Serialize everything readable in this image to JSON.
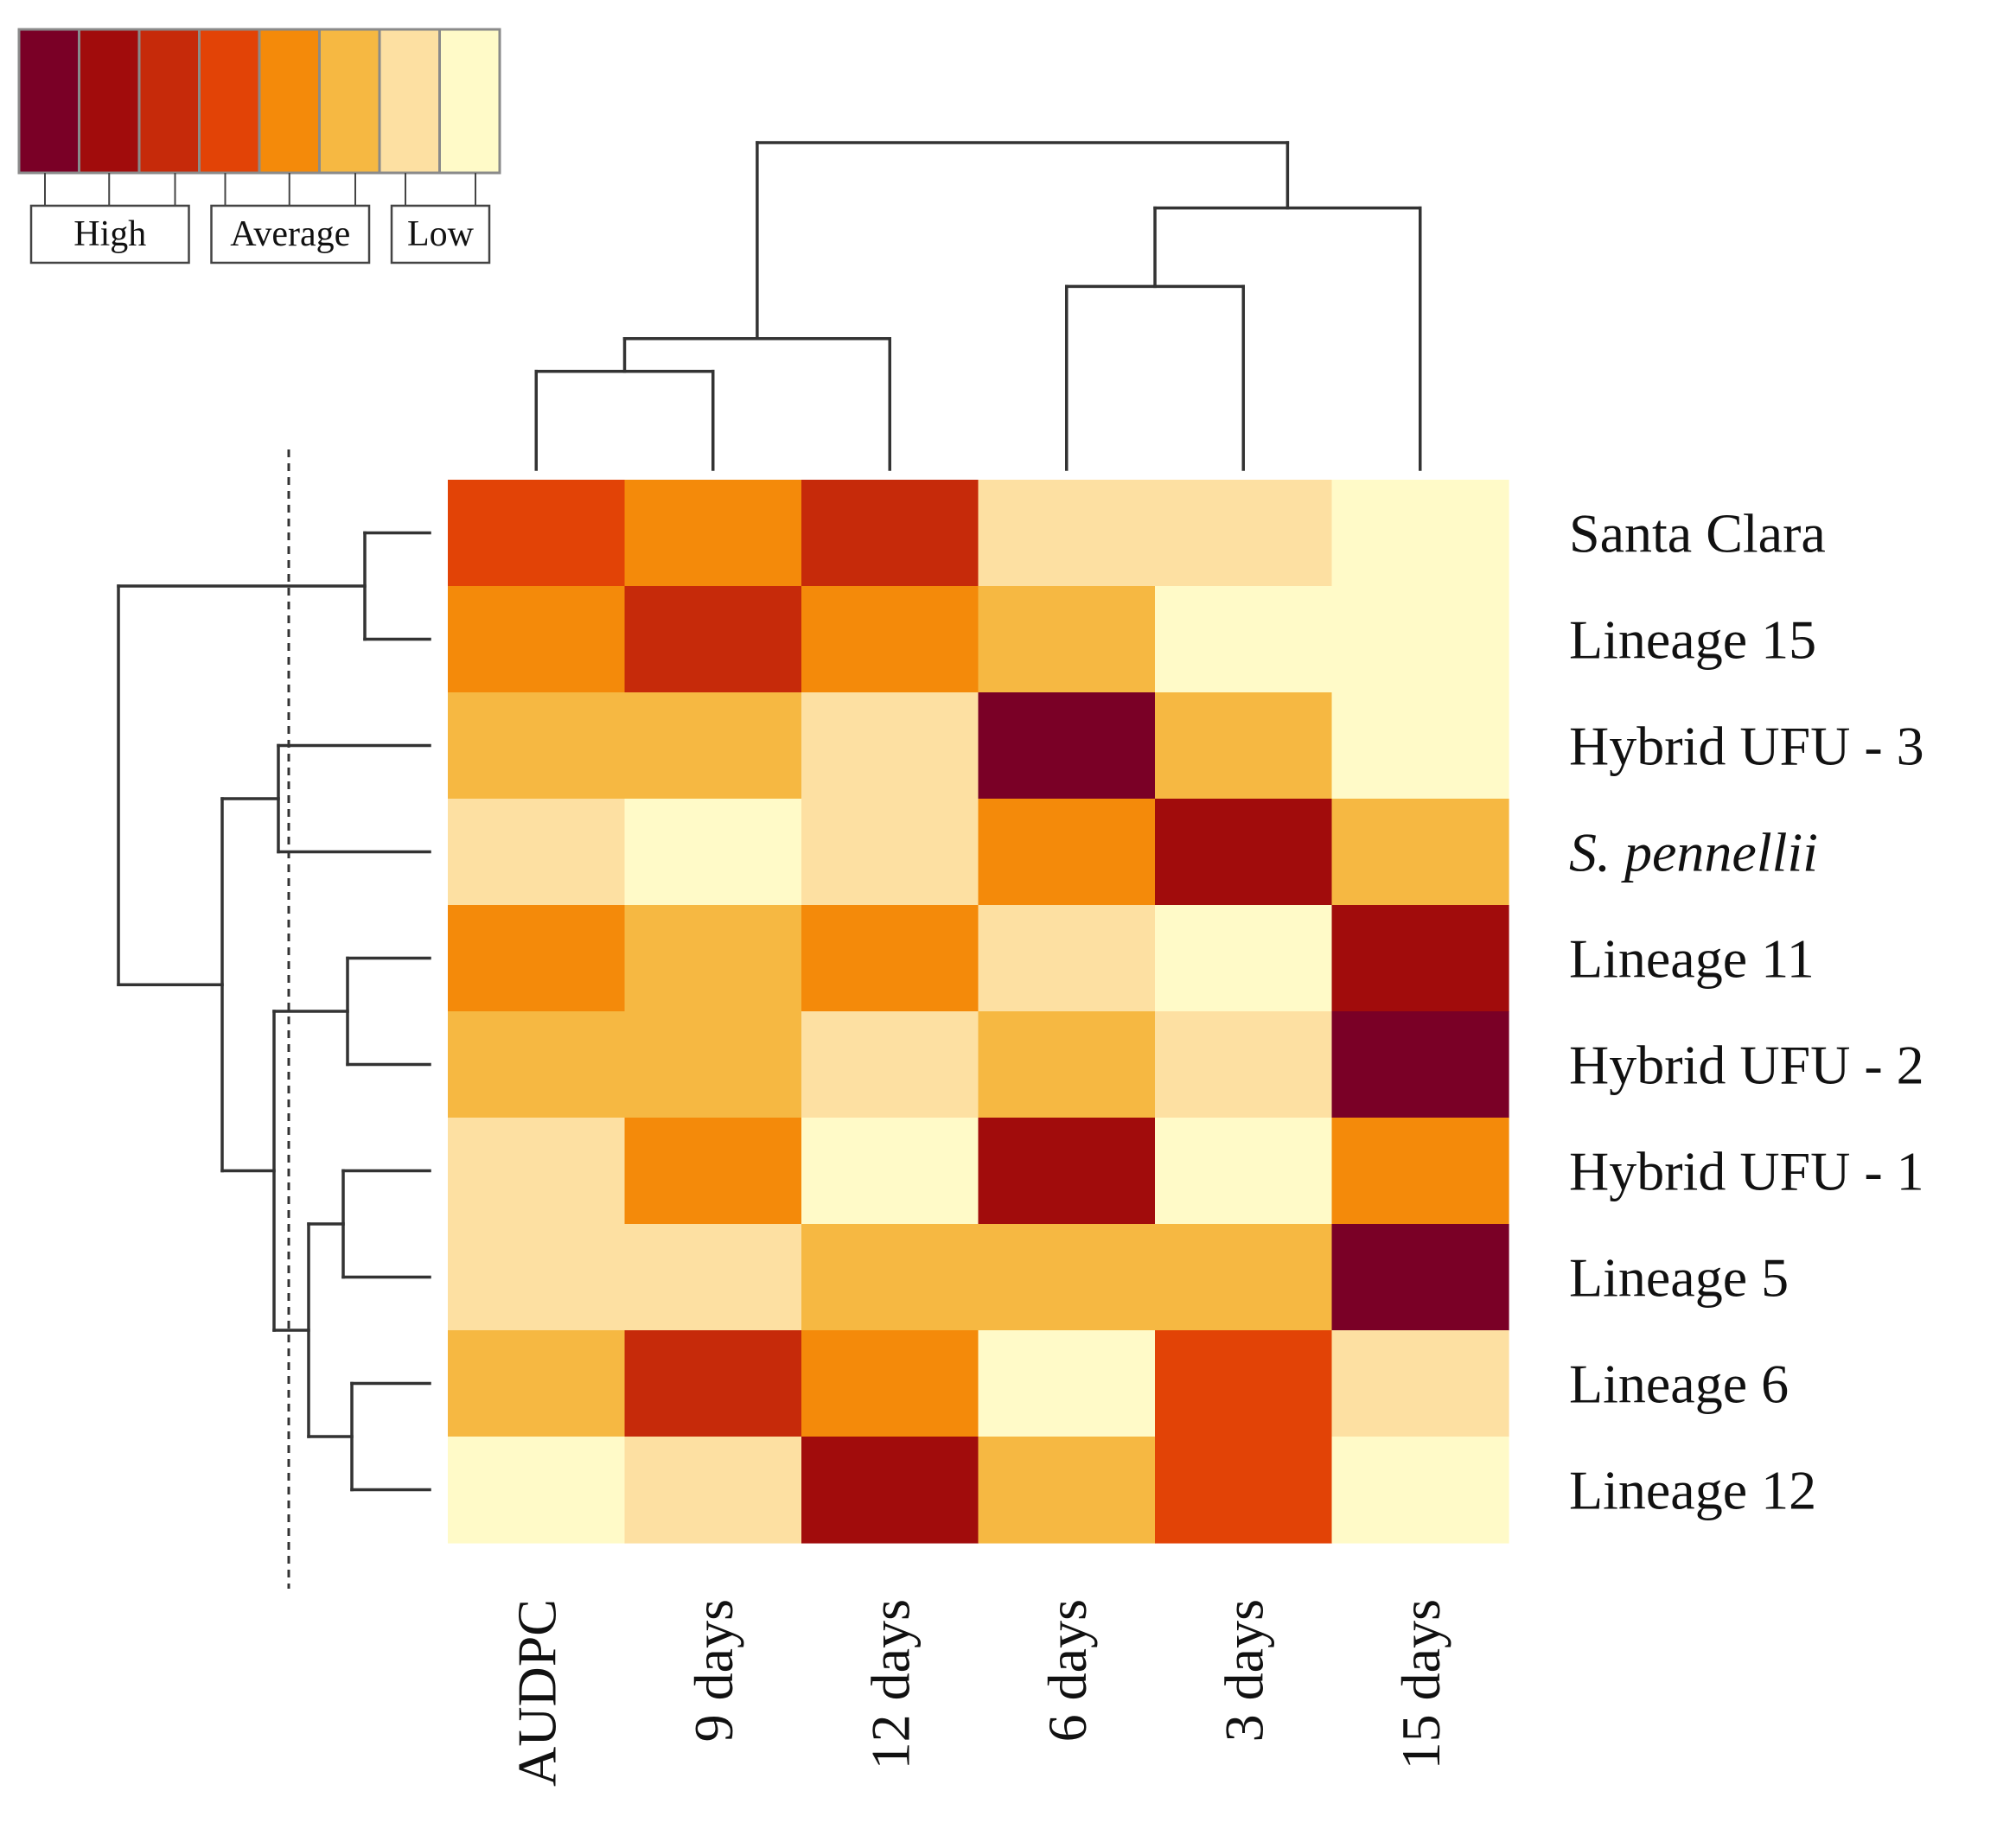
{
  "chart_data": {
    "type": "heatmap",
    "title": "",
    "xlabel": "",
    "ylabel": "",
    "columns": [
      "AUDPC",
      "9 days",
      "12 days",
      "6 days",
      "3 days",
      "15 days"
    ],
    "rows": [
      {
        "label": "Santa Clara",
        "italic": false
      },
      {
        "label": "Lineage 15",
        "italic": false
      },
      {
        "label": "Hybrid UFU  - 3",
        "italic": false
      },
      {
        "label": "S. pennellii",
        "italic": true
      },
      {
        "label": "Lineage 11",
        "italic": false
      },
      {
        "label": "Hybrid UFU  - 2",
        "italic": false
      },
      {
        "label": "Hybrid UFU  - 1",
        "italic": false
      },
      {
        "label": "Lineage 5",
        "italic": false
      },
      {
        "label": "Lineage 6",
        "italic": false
      },
      {
        "label": "Lineage 12",
        "italic": false
      }
    ],
    "color_scale": [
      "#7a0026",
      "#a10c0c",
      "#c62a0a",
      "#e24306",
      "#f48a0a",
      "#f6b842",
      "#fde0a2",
      "#fffac8"
    ],
    "levels": [
      [
        3,
        4,
        2,
        6,
        6,
        7
      ],
      [
        4,
        2,
        4,
        5,
        7,
        7
      ],
      [
        5,
        5,
        6,
        0,
        5,
        7
      ],
      [
        6,
        7,
        6,
        4,
        1,
        5
      ],
      [
        4,
        5,
        4,
        6,
        7,
        1
      ],
      [
        5,
        5,
        6,
        5,
        6,
        0
      ],
      [
        6,
        4,
        7,
        1,
        7,
        4
      ],
      [
        6,
        6,
        5,
        5,
        5,
        0
      ],
      [
        5,
        2,
        4,
        7,
        3,
        6
      ],
      [
        7,
        6,
        1,
        5,
        3,
        7
      ]
    ],
    "legend": {
      "position": "top-left",
      "groups": [
        {
          "label": "High",
          "from": 0,
          "to": 2
        },
        {
          "label": "Average",
          "from": 3,
          "to": 5
        },
        {
          "label": "Low",
          "from": 6,
          "to": 7
        }
      ]
    },
    "row_dendrogram": {
      "cut_line": "dashed",
      "merges": [
        {
          "a": 0,
          "b": 1,
          "h": 0.15
        },
        {
          "a": 2,
          "b": 3,
          "h": 0.35
        },
        {
          "a": 4,
          "b": 5,
          "h": 0.19
        },
        {
          "a": 8,
          "b": 9,
          "h": 0.18
        },
        {
          "a": 6,
          "b": 7,
          "h": 0.2
        },
        {
          "a": "m5",
          "b": "m4",
          "h": 0.28
        },
        {
          "a": "m3",
          "b": "m6",
          "h": 0.36
        },
        {
          "a": "m2",
          "b": "m7",
          "h": 0.48
        },
        {
          "a": "m1",
          "b": "m8",
          "h": 0.72
        }
      ]
    },
    "column_dendrogram": {
      "merges": [
        {
          "a": 0,
          "b": 1,
          "h": 0.3
        },
        {
          "a": "m1",
          "b": 2,
          "h": 0.4
        },
        {
          "a": 3,
          "b": 4,
          "h": 0.56
        },
        {
          "a": "m3",
          "b": 5,
          "h": 0.8
        },
        {
          "a": "m2",
          "b": "m4",
          "h": 1.0
        }
      ]
    }
  }
}
